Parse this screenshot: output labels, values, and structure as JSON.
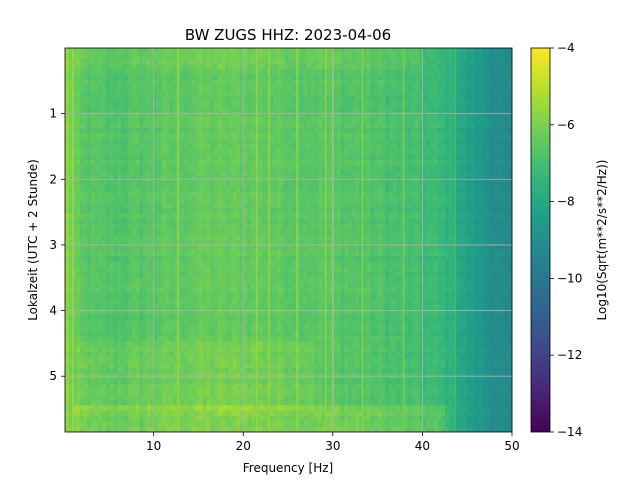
{
  "chart_data": {
    "type": "heatmap",
    "title": "BW ZUGS  HHZ: 2023-04-06",
    "xlabel": "Frequency [Hz]",
    "ylabel": "Lokalzeit (UTC + 2 Stunde)",
    "xlim": [
      0.1,
      50
    ],
    "ylim": [
      5.85,
      0.0
    ],
    "y_inverted": true,
    "xticks": [
      10,
      20,
      30,
      40,
      50
    ],
    "yticks": [
      1,
      2,
      3,
      4,
      5
    ],
    "grid": true,
    "colormap": "viridis",
    "colorbar": {
      "label": "Log10(Sqrt(m**2/s**2/Hz))",
      "range": [
        -14,
        -4
      ],
      "ticks": [
        -4,
        -6,
        -8,
        -10,
        -12,
        -14
      ]
    },
    "spectrum_profile": {
      "freq_hz": [
        0.1,
        1,
        2,
        5,
        10,
        15,
        20,
        25,
        30,
        35,
        38,
        40,
        42,
        43.5,
        45,
        47,
        50
      ],
      "log10_asd": [
        -5.5,
        -6.3,
        -6.6,
        -6.8,
        -6.6,
        -6.4,
        -6.4,
        -6.5,
        -6.6,
        -6.8,
        -7.0,
        -7.1,
        -7.3,
        -7.7,
        -8.3,
        -8.8,
        -9.4
      ]
    },
    "bright_lines_hz": [
      1.0,
      12.7,
      21.5,
      22.9,
      26.0,
      29.2,
      30.0,
      33.3,
      37.9,
      43.6
    ],
    "loud_episodes": [
      {
        "start_h": 4.45,
        "end_h": 5.5,
        "f_min_hz": 1.5,
        "f_max_hz": 28,
        "delta_log10": 0.35
      },
      {
        "start_h": 5.48,
        "end_h": 5.85,
        "f_min_hz": 1,
        "f_max_hz": 43,
        "delta_log10": 0.6
      },
      {
        "start_h": 0.0,
        "end_h": 0.3,
        "f_min_hz": 1,
        "f_max_hz": 40,
        "delta_log10": 0.25
      }
    ]
  }
}
